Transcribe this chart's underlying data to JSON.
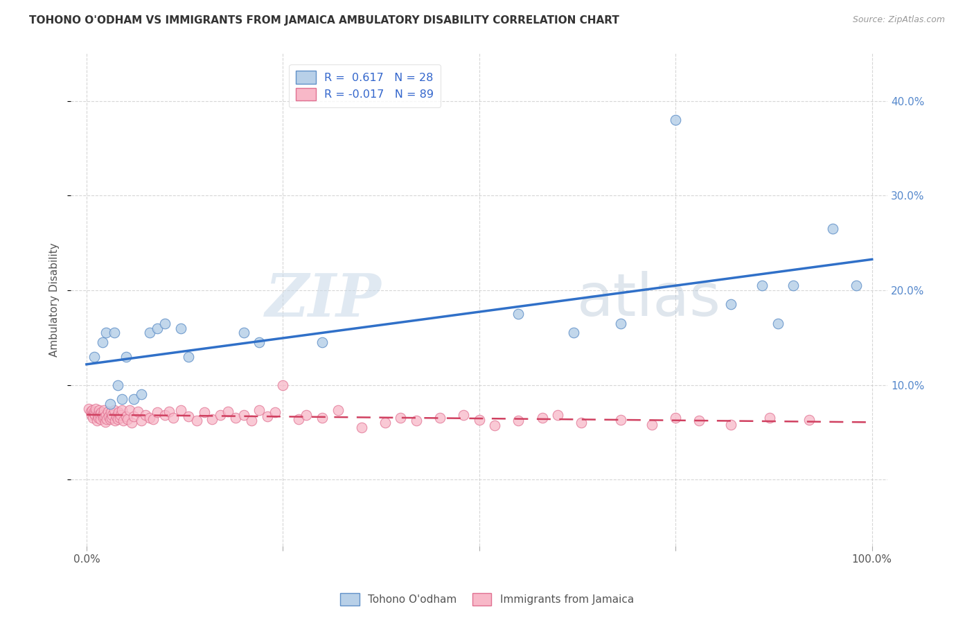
{
  "title": "TOHONO O'ODHAM VS IMMIGRANTS FROM JAMAICA AMBULATORY DISABILITY CORRELATION CHART",
  "source": "Source: ZipAtlas.com",
  "ylabel": "Ambulatory Disability",
  "xlim": [
    -0.02,
    1.02
  ],
  "ylim": [
    -0.07,
    0.45
  ],
  "xticks": [
    0.0,
    0.25,
    0.5,
    0.75,
    1.0
  ],
  "xticklabels": [
    "0.0%",
    "",
    "",
    "",
    "100.0%"
  ],
  "yticks": [
    0.0,
    0.1,
    0.2,
    0.3,
    0.4
  ],
  "yticklabels": [
    "",
    "10.0%",
    "20.0%",
    "30.0%",
    "40.0%"
  ],
  "blue_R": 0.617,
  "blue_N": 28,
  "pink_R": -0.017,
  "pink_N": 89,
  "blue_face_color": "#b8d0e8",
  "pink_face_color": "#f8b8c8",
  "blue_edge_color": "#6090c8",
  "pink_edge_color": "#e07090",
  "blue_line_color": "#3070c8",
  "pink_line_color": "#d04060",
  "watermark_zip": "ZIP",
  "watermark_atlas": "atlas",
  "legend_label_blue": "Tohono O'odham",
  "legend_label_pink": "Immigrants from Jamaica",
  "blue_points_x": [
    0.01,
    0.02,
    0.025,
    0.03,
    0.035,
    0.04,
    0.045,
    0.05,
    0.06,
    0.07,
    0.08,
    0.09,
    0.1,
    0.12,
    0.13,
    0.2,
    0.22,
    0.3,
    0.55,
    0.62,
    0.68,
    0.75,
    0.82,
    0.86,
    0.88,
    0.9,
    0.95,
    0.98
  ],
  "blue_points_y": [
    0.13,
    0.145,
    0.155,
    0.08,
    0.155,
    0.1,
    0.085,
    0.13,
    0.085,
    0.09,
    0.155,
    0.16,
    0.165,
    0.16,
    0.13,
    0.155,
    0.145,
    0.145,
    0.175,
    0.155,
    0.165,
    0.38,
    0.185,
    0.205,
    0.165,
    0.205,
    0.265,
    0.205
  ],
  "pink_points_x": [
    0.003,
    0.005,
    0.006,
    0.007,
    0.008,
    0.009,
    0.01,
    0.011,
    0.012,
    0.013,
    0.014,
    0.015,
    0.016,
    0.017,
    0.018,
    0.019,
    0.02,
    0.021,
    0.022,
    0.023,
    0.024,
    0.025,
    0.026,
    0.027,
    0.028,
    0.03,
    0.031,
    0.032,
    0.033,
    0.035,
    0.036,
    0.038,
    0.04,
    0.041,
    0.042,
    0.043,
    0.045,
    0.047,
    0.05,
    0.052,
    0.055,
    0.057,
    0.06,
    0.065,
    0.07,
    0.075,
    0.08,
    0.085,
    0.09,
    0.1,
    0.105,
    0.11,
    0.12,
    0.13,
    0.14,
    0.15,
    0.16,
    0.17,
    0.18,
    0.19,
    0.2,
    0.21,
    0.22,
    0.23,
    0.24,
    0.25,
    0.27,
    0.28,
    0.3,
    0.32,
    0.35,
    0.38,
    0.4,
    0.42,
    0.45,
    0.48,
    0.5,
    0.52,
    0.55,
    0.58,
    0.6,
    0.63,
    0.68,
    0.72,
    0.75,
    0.78,
    0.82,
    0.87,
    0.92
  ],
  "pink_points_y": [
    0.075,
    0.072,
    0.068,
    0.073,
    0.065,
    0.071,
    0.07,
    0.068,
    0.075,
    0.062,
    0.068,
    0.065,
    0.073,
    0.069,
    0.064,
    0.071,
    0.068,
    0.065,
    0.073,
    0.066,
    0.061,
    0.068,
    0.064,
    0.072,
    0.067,
    0.064,
    0.071,
    0.065,
    0.068,
    0.073,
    0.062,
    0.067,
    0.064,
    0.071,
    0.065,
    0.068,
    0.073,
    0.062,
    0.067,
    0.064,
    0.073,
    0.06,
    0.067,
    0.072,
    0.062,
    0.068,
    0.065,
    0.064,
    0.071,
    0.068,
    0.072,
    0.065,
    0.073,
    0.067,
    0.062,
    0.071,
    0.064,
    0.068,
    0.072,
    0.065,
    0.068,
    0.062,
    0.073,
    0.067,
    0.071,
    0.1,
    0.064,
    0.068,
    0.065,
    0.073,
    0.055,
    0.06,
    0.065,
    0.062,
    0.065,
    0.068,
    0.063,
    0.057,
    0.062,
    0.065,
    0.068,
    0.06,
    0.063,
    0.058,
    0.065,
    0.062,
    0.058,
    0.065,
    0.063
  ],
  "bg_color": "#ffffff",
  "grid_color": "#cccccc"
}
